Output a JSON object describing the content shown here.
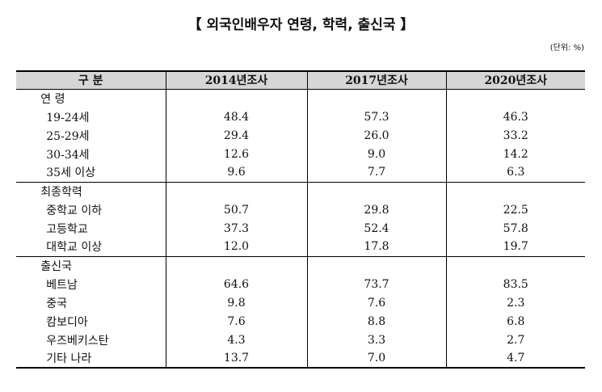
{
  "title": "【 외국인배우자 연령, 학력, 출신국 】",
  "unit": "(단위: %)",
  "table": {
    "headers": [
      "구 분",
      "2014년조사",
      "2017년조사",
      "2020년조사"
    ],
    "groups": [
      {
        "label": "연 령",
        "rows": [
          {
            "label": "19-24세",
            "values": [
              "48.4",
              "57.3",
              "46.3"
            ]
          },
          {
            "label": "25-29세",
            "values": [
              "29.4",
              "26.0",
              "33.2"
            ]
          },
          {
            "label": "30-34세",
            "values": [
              "12.6",
              "9.0",
              "14.2"
            ]
          },
          {
            "label": "35세 이상",
            "values": [
              "9.6",
              "7.7",
              "6.3"
            ]
          }
        ]
      },
      {
        "label": "최종학력",
        "rows": [
          {
            "label": "중학교 이하",
            "values": [
              "50.7",
              "29.8",
              "22.5"
            ]
          },
          {
            "label": "고등학교",
            "values": [
              "37.3",
              "52.4",
              "57.8"
            ]
          },
          {
            "label": "대학교 이상",
            "values": [
              "12.0",
              "17.8",
              "19.7"
            ]
          }
        ]
      },
      {
        "label": "출신국",
        "rows": [
          {
            "label": "베트남",
            "values": [
              "64.6",
              "73.7",
              "83.5"
            ]
          },
          {
            "label": "중국",
            "values": [
              "9.8",
              "7.6",
              "2.3"
            ]
          },
          {
            "label": "캄보디아",
            "values": [
              "7.6",
              "8.8",
              "6.8"
            ]
          },
          {
            "label": "우즈베키스탄",
            "values": [
              "4.3",
              "3.3",
              "2.7"
            ]
          },
          {
            "label": "기타 나라",
            "values": [
              "13.7",
              "7.0",
              "4.7"
            ]
          }
        ]
      }
    ]
  }
}
